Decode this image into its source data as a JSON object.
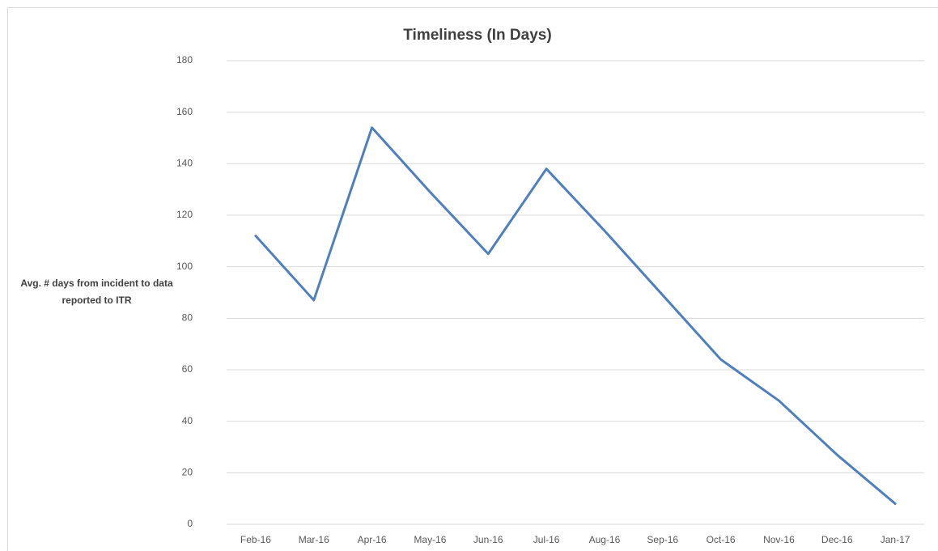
{
  "chart_data": {
    "type": "line",
    "title": "Timeliness (In Days)",
    "y_label": "Avg. # days from incident to data reported to ITR",
    "categories": [
      "Feb-16",
      "Mar-16",
      "Apr-16",
      "May-16",
      "Jun-16",
      "Jul-16",
      "Aug-16",
      "Sep-16",
      "Oct-16",
      "Nov-16",
      "Dec-16",
      "Jan-17"
    ],
    "values": [
      112,
      87,
      154,
      129,
      105,
      138,
      114,
      89,
      64,
      48,
      27,
      8
    ],
    "color": "#4f7fbc",
    "ylim": [
      0,
      180
    ],
    "yticks": [
      0,
      20,
      40,
      60,
      80,
      100,
      120,
      140,
      160,
      180
    ],
    "grid": true
  }
}
